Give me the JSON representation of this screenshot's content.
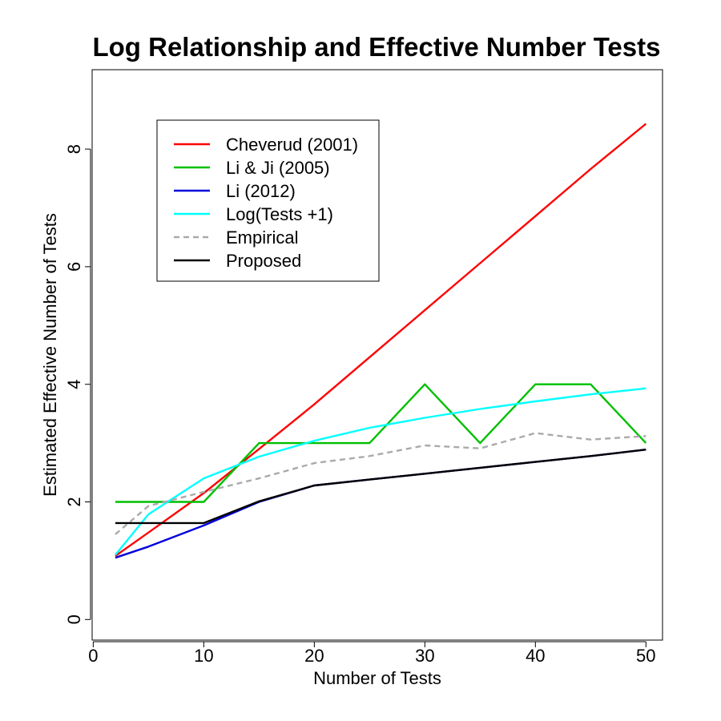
{
  "chart_data": {
    "type": "line",
    "title": "Log Relationship and Effective Number Tests",
    "xlabel": "Number of Tests",
    "ylabel": "Estimated Effective Number of Tests",
    "xlim": [
      -0.1,
      51.5
    ],
    "ylim": [
      -0.35,
      9.35
    ],
    "xticks": [
      0,
      10,
      20,
      30,
      40,
      50
    ],
    "yticks": [
      0,
      2,
      4,
      6,
      8
    ],
    "grid": false,
    "legend_position": "top-left",
    "series": [
      {
        "name": "Cheverud (2001)",
        "color": "#ff0000",
        "dash": "solid",
        "x": [
          2,
          5,
          10,
          15,
          20,
          25,
          30,
          35,
          40,
          45,
          50
        ],
        "y": [
          1.08,
          1.48,
          2.15,
          2.9,
          3.66,
          4.46,
          5.26,
          6.06,
          6.86,
          7.66,
          8.43
        ]
      },
      {
        "name": "Li & Ji (2005)",
        "color": "#00c000",
        "dash": "solid",
        "x": [
          2,
          5,
          10,
          15,
          20,
          25,
          30,
          35,
          40,
          45,
          50
        ],
        "y": [
          2,
          2,
          2,
          3,
          3,
          3,
          4,
          3,
          4,
          4,
          3
        ]
      },
      {
        "name": "Li (2012)",
        "color": "#0000dd",
        "dash": "solid",
        "x": [
          2,
          5,
          10,
          15,
          20,
          25,
          30,
          35,
          40,
          45,
          50
        ],
        "y": [
          1.05,
          1.24,
          1.6,
          2.0,
          2.28,
          2.38,
          2.48,
          2.58,
          2.68,
          2.78,
          2.89
        ]
      },
      {
        "name": "Log(Tests +1)",
        "color": "#00ffff",
        "dash": "solid",
        "x": [
          2,
          5,
          10,
          15,
          20,
          25,
          30,
          35,
          40,
          45,
          50
        ],
        "y": [
          1.1,
          1.79,
          2.4,
          2.77,
          3.04,
          3.26,
          3.43,
          3.58,
          3.71,
          3.83,
          3.93
        ]
      },
      {
        "name": "Empirical",
        "color": "#aaaaaa",
        "dash": "dashed",
        "x": [
          2,
          5,
          10,
          15,
          20,
          25,
          30,
          35,
          40,
          45,
          50
        ],
        "y": [
          1.45,
          1.93,
          2.17,
          2.4,
          2.66,
          2.78,
          2.96,
          2.91,
          3.17,
          3.06,
          3.12
        ]
      },
      {
        "name": "Proposed",
        "color": "#000000",
        "dash": "solid",
        "x": [
          2,
          5,
          10,
          15,
          20,
          25,
          30,
          35,
          40,
          45,
          50
        ],
        "y": [
          1.64,
          1.64,
          1.64,
          2.01,
          2.28,
          2.38,
          2.48,
          2.58,
          2.68,
          2.78,
          2.89
        ]
      }
    ]
  }
}
